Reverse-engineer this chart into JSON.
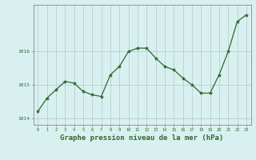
{
  "x": [
    0,
    1,
    2,
    3,
    4,
    5,
    6,
    7,
    8,
    9,
    10,
    11,
    12,
    13,
    14,
    15,
    16,
    17,
    18,
    19,
    20,
    21,
    22,
    23
  ],
  "y": [
    1014.2,
    1014.6,
    1014.85,
    1015.1,
    1015.05,
    1014.8,
    1014.7,
    1014.65,
    1015.3,
    1015.55,
    1016.0,
    1016.1,
    1016.1,
    1015.8,
    1015.55,
    1015.45,
    1015.2,
    1015.0,
    1014.75,
    1014.75,
    1015.3,
    1016.0,
    1016.9,
    1017.1
  ],
  "line_color": "#2d6a2d",
  "marker": "*",
  "marker_size": 3,
  "bg_color": "#d8f0f0",
  "grid_color": "#b0c8c8",
  "tick_color": "#2d6a2d",
  "label_color": "#2d6a2d",
  "xlabel": "Graphe pression niveau de la mer (hPa)",
  "xlabel_fontsize": 6.5,
  "ylabel_ticks": [
    1014,
    1015,
    1016
  ],
  "ylim": [
    1013.8,
    1017.4
  ],
  "xlim": [
    -0.5,
    23.5
  ],
  "spine_color": "#888888"
}
